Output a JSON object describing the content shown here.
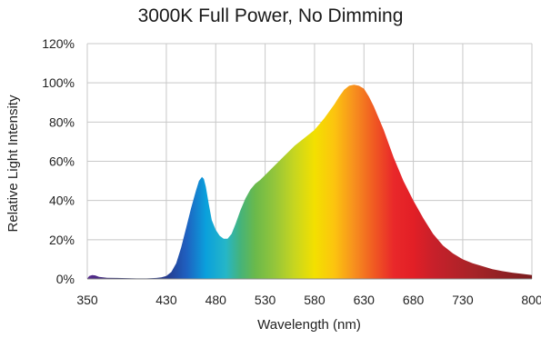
{
  "chart_data": {
    "type": "area",
    "title": "3000K Full Power, No Dimming",
    "xlabel": "Wavelength (nm)",
    "ylabel": "Relative Light Intensity",
    "xlim": [
      350,
      800
    ],
    "ylim": [
      0,
      120
    ],
    "x_ticks": [
      350,
      430,
      480,
      530,
      580,
      630,
      680,
      730,
      800
    ],
    "y_ticks": [
      0,
      20,
      40,
      60,
      80,
      100,
      120
    ],
    "y_tick_labels": [
      "0%",
      "20%",
      "40%",
      "60%",
      "80%",
      "100%",
      "120%"
    ],
    "grid": true,
    "series": [
      {
        "x": [
          350,
          352,
          355,
          358,
          362,
          366,
          370,
          380,
          390,
          400,
          410,
          420,
          425,
          430,
          435,
          440,
          445,
          450,
          455,
          460,
          463,
          466,
          468,
          470,
          473,
          476,
          480,
          484,
          488,
          492,
          496,
          500,
          505,
          510,
          515,
          520,
          525,
          530,
          540,
          550,
          560,
          570,
          580,
          590,
          600,
          605,
          610,
          615,
          620,
          625,
          630,
          635,
          640,
          650,
          660,
          670,
          680,
          690,
          700,
          710,
          720,
          730,
          740,
          750,
          760,
          770,
          780,
          790,
          800
        ],
        "values": [
          0.3,
          1.5,
          2.0,
          1.8,
          1.0,
          0.8,
          0.6,
          0.5,
          0.4,
          0.3,
          0.3,
          0.5,
          0.8,
          1.5,
          3.5,
          8.0,
          16.0,
          26.0,
          36.0,
          45.0,
          50.0,
          52.0,
          51.0,
          47.0,
          38.0,
          30.0,
          25.0,
          22.0,
          20.5,
          20.5,
          23.0,
          28.0,
          35.0,
          41.0,
          45.5,
          48.5,
          50.5,
          53.0,
          58.0,
          63.0,
          68.0,
          72.0,
          76.0,
          82.0,
          89.0,
          93.0,
          96.5,
          98.5,
          99.0,
          98.5,
          97.0,
          93.0,
          88.0,
          76.0,
          62.0,
          50.0,
          40.0,
          31.0,
          23.0,
          17.0,
          13.0,
          10.0,
          8.0,
          6.5,
          5.0,
          4.0,
          3.2,
          2.6,
          2.0
        ]
      }
    ]
  },
  "spectrum_colors": [
    {
      "nm": 350,
      "color": "#5b2b8e"
    },
    {
      "nm": 380,
      "color": "#2a2a70"
    },
    {
      "nm": 430,
      "color": "#243a8c"
    },
    {
      "nm": 450,
      "color": "#1f5fbf"
    },
    {
      "nm": 470,
      "color": "#0aa0dc"
    },
    {
      "nm": 490,
      "color": "#25b6c8"
    },
    {
      "nm": 505,
      "color": "#45b37a"
    },
    {
      "nm": 520,
      "color": "#6ab94b"
    },
    {
      "nm": 540,
      "color": "#95c63a"
    },
    {
      "nm": 560,
      "color": "#c8d61f"
    },
    {
      "nm": 580,
      "color": "#f3e000"
    },
    {
      "nm": 600,
      "color": "#fcc40f"
    },
    {
      "nm": 620,
      "color": "#f7901e"
    },
    {
      "nm": 640,
      "color": "#f05a22"
    },
    {
      "nm": 660,
      "color": "#e9282a"
    },
    {
      "nm": 680,
      "color": "#e21f26"
    },
    {
      "nm": 700,
      "color": "#c8202a"
    },
    {
      "nm": 740,
      "color": "#a72428"
    },
    {
      "nm": 800,
      "color": "#7a1d1f"
    }
  ],
  "colors": {
    "grid": "#c8c8c8",
    "axis": "#888888"
  }
}
